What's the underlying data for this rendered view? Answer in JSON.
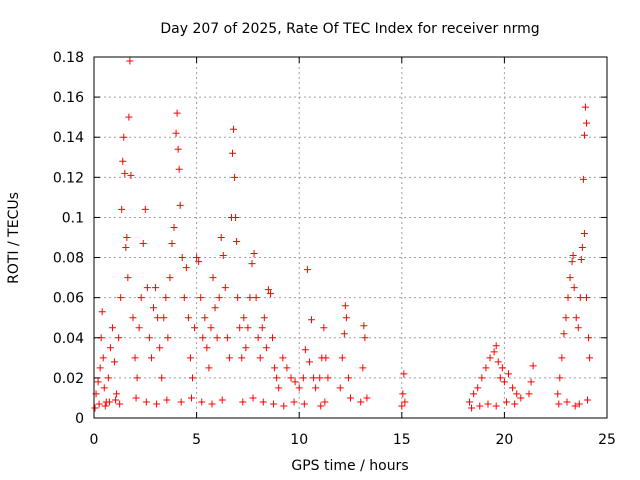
{
  "chart_data": {
    "type": "scatter",
    "title": "Day 207 of 2025, Rate Of TEC Index for receiver nrmg",
    "xlabel": "GPS time / hours",
    "ylabel": "ROTI / TECUs",
    "xlim": [
      0,
      25
    ],
    "ylim": [
      0,
      0.18
    ],
    "xticks": [
      0,
      5,
      10,
      15,
      20,
      25
    ],
    "yticks": [
      0,
      0.02,
      0.04,
      0.06,
      0.08,
      0.1,
      0.12,
      0.14,
      0.16,
      0.18
    ],
    "ytick_labels": [
      "0",
      "0.02",
      "0.04",
      "0.06",
      "0.08",
      "0.1",
      "0.12",
      "0.14",
      "0.16",
      "0.18"
    ],
    "xtick_labels": [
      "0",
      "5",
      "10",
      "15",
      "20",
      "25"
    ],
    "grid": true,
    "marker": "plus",
    "color": "#ff0000",
    "series": [
      {
        "name": "",
        "points": [
          [
            0.1,
            0.012
          ],
          [
            0.2,
            0.018
          ],
          [
            0.3,
            0.025
          ],
          [
            0.35,
            0.04
          ],
          [
            0.4,
            0.053
          ],
          [
            0.45,
            0.03
          ],
          [
            0.5,
            0.015
          ],
          [
            0.6,
            0.008
          ],
          [
            0.7,
            0.02
          ],
          [
            0.8,
            0.035
          ],
          [
            0.9,
            0.045
          ],
          [
            1.0,
            0.028
          ],
          [
            1.1,
            0.012
          ],
          [
            1.2,
            0.04
          ],
          [
            1.3,
            0.06
          ],
          [
            1.35,
            0.104
          ],
          [
            1.4,
            0.128
          ],
          [
            1.45,
            0.14
          ],
          [
            1.5,
            0.122
          ],
          [
            1.55,
            0.085
          ],
          [
            1.6,
            0.09
          ],
          [
            1.65,
            0.07
          ],
          [
            1.7,
            0.15
          ],
          [
            1.75,
            0.178
          ],
          [
            1.8,
            0.121
          ],
          [
            1.9,
            0.05
          ],
          [
            2.0,
            0.03
          ],
          [
            2.1,
            0.02
          ],
          [
            2.2,
            0.045
          ],
          [
            2.3,
            0.06
          ],
          [
            2.4,
            0.087
          ],
          [
            2.5,
            0.104
          ],
          [
            2.6,
            0.065
          ],
          [
            2.7,
            0.04
          ],
          [
            2.8,
            0.03
          ],
          [
            2.9,
            0.055
          ],
          [
            3.0,
            0.065
          ],
          [
            3.1,
            0.05
          ],
          [
            3.2,
            0.035
          ],
          [
            3.3,
            0.02
          ],
          [
            3.4,
            0.05
          ],
          [
            3.5,
            0.06
          ],
          [
            3.6,
            0.04
          ],
          [
            3.7,
            0.07
          ],
          [
            3.8,
            0.087
          ],
          [
            3.9,
            0.095
          ],
          [
            4.0,
            0.142
          ],
          [
            4.05,
            0.152
          ],
          [
            4.1,
            0.134
          ],
          [
            4.15,
            0.124
          ],
          [
            4.2,
            0.106
          ],
          [
            4.3,
            0.08
          ],
          [
            4.4,
            0.06
          ],
          [
            4.5,
            0.075
          ],
          [
            4.6,
            0.05
          ],
          [
            4.7,
            0.03
          ],
          [
            4.8,
            0.02
          ],
          [
            4.9,
            0.045
          ],
          [
            5.0,
            0.08
          ],
          [
            5.1,
            0.078
          ],
          [
            5.2,
            0.06
          ],
          [
            5.3,
            0.04
          ],
          [
            5.4,
            0.05
          ],
          [
            5.5,
            0.035
          ],
          [
            5.6,
            0.025
          ],
          [
            5.7,
            0.045
          ],
          [
            5.8,
            0.07
          ],
          [
            5.9,
            0.055
          ],
          [
            6.0,
            0.04
          ],
          [
            6.1,
            0.06
          ],
          [
            6.2,
            0.09
          ],
          [
            6.3,
            0.081
          ],
          [
            6.4,
            0.065
          ],
          [
            6.5,
            0.04
          ],
          [
            6.6,
            0.03
          ],
          [
            6.7,
            0.1
          ],
          [
            6.75,
            0.132
          ],
          [
            6.8,
            0.144
          ],
          [
            6.85,
            0.12
          ],
          [
            6.9,
            0.1
          ],
          [
            6.95,
            0.088
          ],
          [
            7.0,
            0.06
          ],
          [
            7.1,
            0.045
          ],
          [
            7.2,
            0.03
          ],
          [
            7.3,
            0.05
          ],
          [
            7.4,
            0.035
          ],
          [
            7.5,
            0.045
          ],
          [
            7.6,
            0.06
          ],
          [
            7.7,
            0.077
          ],
          [
            7.8,
            0.082
          ],
          [
            7.9,
            0.06
          ],
          [
            8.0,
            0.04
          ],
          [
            8.1,
            0.03
          ],
          [
            8.2,
            0.045
          ],
          [
            8.3,
            0.05
          ],
          [
            8.4,
            0.035
          ],
          [
            8.5,
            0.064
          ],
          [
            8.6,
            0.062
          ],
          [
            8.7,
            0.04
          ],
          [
            8.8,
            0.025
          ],
          [
            8.9,
            0.02
          ],
          [
            9.0,
            0.015
          ],
          [
            9.2,
            0.03
          ],
          [
            9.4,
            0.025
          ],
          [
            9.6,
            0.02
          ],
          [
            9.8,
            0.018
          ],
          [
            10.0,
            0.015
          ],
          [
            10.2,
            0.02
          ],
          [
            10.3,
            0.034
          ],
          [
            10.4,
            0.074
          ],
          [
            10.5,
            0.028
          ],
          [
            10.6,
            0.049
          ],
          [
            10.7,
            0.02
          ],
          [
            10.8,
            0.015
          ],
          [
            11.0,
            0.02
          ],
          [
            11.1,
            0.03
          ],
          [
            11.2,
            0.045
          ],
          [
            11.3,
            0.03
          ],
          [
            11.4,
            0.02
          ],
          [
            12.0,
            0.015
          ],
          [
            12.1,
            0.03
          ],
          [
            12.2,
            0.042
          ],
          [
            12.25,
            0.056
          ],
          [
            12.3,
            0.05
          ],
          [
            12.4,
            0.02
          ],
          [
            12.5,
            0.01
          ],
          [
            13.0,
            0.008
          ],
          [
            13.1,
            0.025
          ],
          [
            13.15,
            0.046
          ],
          [
            13.2,
            0.04
          ],
          [
            13.3,
            0.01
          ],
          [
            15.0,
            0.006
          ],
          [
            15.05,
            0.012
          ],
          [
            15.1,
            0.022
          ],
          [
            15.15,
            0.008
          ],
          [
            18.3,
            0.008
          ],
          [
            18.5,
            0.012
          ],
          [
            18.7,
            0.015
          ],
          [
            18.9,
            0.02
          ],
          [
            19.1,
            0.025
          ],
          [
            19.3,
            0.03
          ],
          [
            19.5,
            0.033
          ],
          [
            19.6,
            0.036
          ],
          [
            19.7,
            0.028
          ],
          [
            19.8,
            0.02
          ],
          [
            19.9,
            0.025
          ],
          [
            20.0,
            0.018
          ],
          [
            20.2,
            0.022
          ],
          [
            20.4,
            0.015
          ],
          [
            20.6,
            0.012
          ],
          [
            20.8,
            0.01
          ],
          [
            21.2,
            0.012
          ],
          [
            21.3,
            0.018
          ],
          [
            21.4,
            0.026
          ],
          [
            22.6,
            0.012
          ],
          [
            22.7,
            0.02
          ],
          [
            22.8,
            0.03
          ],
          [
            22.9,
            0.042
          ],
          [
            23.0,
            0.05
          ],
          [
            23.1,
            0.06
          ],
          [
            23.2,
            0.07
          ],
          [
            23.3,
            0.078
          ],
          [
            23.35,
            0.081
          ],
          [
            23.4,
            0.065
          ],
          [
            23.5,
            0.05
          ],
          [
            23.6,
            0.045
          ],
          [
            23.7,
            0.06
          ],
          [
            23.75,
            0.079
          ],
          [
            23.8,
            0.085
          ],
          [
            23.85,
            0.119
          ],
          [
            23.9,
            0.141
          ],
          [
            23.95,
            0.155
          ],
          [
            24.0,
            0.147
          ],
          [
            23.9,
            0.092
          ],
          [
            24.0,
            0.06
          ],
          [
            24.1,
            0.04
          ],
          [
            24.15,
            0.03
          ],
          [
            0.05,
            0.005
          ],
          [
            0.25,
            0.007
          ],
          [
            0.55,
            0.006
          ],
          [
            0.75,
            0.008
          ],
          [
            1.05,
            0.009
          ],
          [
            1.25,
            0.007
          ],
          [
            2.05,
            0.01
          ],
          [
            2.55,
            0.008
          ],
          [
            3.05,
            0.007
          ],
          [
            3.55,
            0.009
          ],
          [
            4.25,
            0.008
          ],
          [
            4.75,
            0.01
          ],
          [
            5.25,
            0.008
          ],
          [
            5.75,
            0.007
          ],
          [
            6.25,
            0.009
          ],
          [
            7.25,
            0.008
          ],
          [
            7.75,
            0.01
          ],
          [
            8.25,
            0.008
          ],
          [
            8.75,
            0.007
          ],
          [
            9.25,
            0.006
          ],
          [
            9.75,
            0.008
          ],
          [
            10.25,
            0.007
          ],
          [
            11.05,
            0.006
          ],
          [
            11.25,
            0.008
          ],
          [
            18.4,
            0.005
          ],
          [
            18.8,
            0.006
          ],
          [
            19.2,
            0.007
          ],
          [
            19.6,
            0.006
          ],
          [
            20.1,
            0.008
          ],
          [
            20.5,
            0.007
          ],
          [
            22.65,
            0.007
          ],
          [
            23.05,
            0.008
          ],
          [
            23.45,
            0.006
          ],
          [
            23.65,
            0.007
          ],
          [
            24.05,
            0.009
          ]
        ]
      }
    ]
  }
}
